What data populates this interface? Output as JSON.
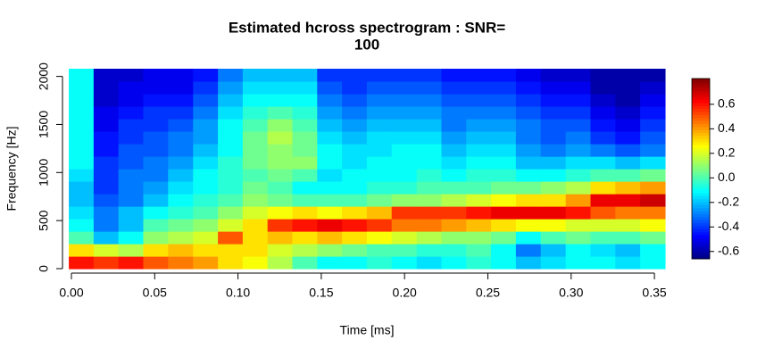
{
  "chart_data": {
    "type": "heatmap",
    "title": [
      "Estimated hcross spectrogram : SNR=",
      "100"
    ],
    "xlabel": "Time [ms]",
    "ylabel": "Frequency [Hz]",
    "xlim": [
      -0.0016,
      0.3564
    ],
    "ylim": [
      0,
      2080
    ],
    "zlim": [
      -0.66,
      0.81
    ],
    "xticks": [
      {
        "value": 0,
        "label": "0.00"
      },
      0.05,
      {
        "value": 0.1,
        "label": "0.10"
      },
      0.15,
      {
        "value": 0.2,
        "label": "0.20"
      },
      0.25,
      {
        "value": 0.3,
        "label": "0.30"
      },
      0.35
    ],
    "yticks": [
      0,
      500,
      1000,
      1500,
      2000
    ],
    "zticks": [
      -0.6,
      -0.4,
      -0.2,
      {
        "value": 0,
        "label": "0.0"
      },
      0.2,
      0.4,
      0.6
    ],
    "colormap": [
      "#00007f",
      "#0000ff",
      "#007fff",
      "#00ffff",
      "#7fff7f",
      "#ffff00",
      "#ff7f00",
      "#ff0000",
      "#7f0000"
    ],
    "x": [
      0.0059,
      0.0208,
      0.0357,
      0.0506,
      0.0655,
      0.0805,
      0.0954,
      0.1103,
      0.1252,
      0.1401,
      0.155,
      0.1699,
      0.1848,
      0.1997,
      0.2147,
      0.2296,
      0.2445,
      0.2594,
      0.2743,
      0.2892,
      0.3042,
      0.3191,
      0.334,
      0.3489
    ],
    "y": [
      65,
      195,
      325,
      455,
      585,
      715,
      845,
      975,
      1105,
      1235,
      1365,
      1495,
      1625,
      1755,
      1885,
      2015
    ],
    "z": [
      [
        0.6,
        0.55,
        0.6,
        0.5,
        0.45,
        0.4,
        0.3,
        0.25,
        0.15,
        0.0,
        -0.1,
        -0.1,
        -0.05,
        -0.1,
        -0.15,
        -0.1,
        -0.05,
        -0.1,
        -0.2,
        -0.15,
        -0.1,
        -0.1,
        -0.15,
        -0.1
      ],
      [
        0.3,
        0.2,
        0.15,
        0.3,
        0.35,
        0.3,
        0.3,
        0.3,
        0.2,
        0.15,
        0.1,
        0.05,
        0.0,
        0.0,
        -0.05,
        -0.05,
        0.0,
        -0.1,
        -0.3,
        -0.2,
        -0.1,
        -0.15,
        -0.2,
        -0.1
      ],
      [
        0.0,
        -0.2,
        -0.1,
        0.1,
        0.15,
        0.2,
        0.5,
        0.3,
        0.35,
        0.3,
        0.35,
        0.3,
        0.25,
        0.2,
        0.15,
        0.1,
        0.1,
        0.05,
        -0.1,
        0.0,
        0.05,
        0.0,
        0.0,
        0.05
      ],
      [
        -0.1,
        -0.3,
        -0.2,
        0.0,
        0.05,
        0.1,
        0.2,
        0.3,
        0.55,
        0.6,
        0.65,
        0.6,
        0.55,
        0.45,
        0.45,
        0.4,
        0.35,
        0.3,
        0.25,
        0.25,
        0.2,
        0.2,
        0.2,
        0.25
      ],
      [
        -0.15,
        -0.3,
        -0.2,
        -0.1,
        -0.05,
        0.0,
        0.1,
        0.2,
        0.25,
        0.3,
        0.25,
        0.3,
        0.35,
        0.55,
        0.55,
        0.55,
        0.6,
        0.65,
        0.65,
        0.65,
        0.6,
        0.5,
        0.45,
        0.45
      ],
      [
        -0.2,
        -0.35,
        -0.3,
        -0.2,
        -0.1,
        -0.05,
        0.0,
        0.1,
        0.05,
        0.0,
        0.0,
        0.0,
        0.05,
        0.1,
        0.1,
        0.15,
        0.2,
        0.25,
        0.3,
        0.3,
        0.4,
        0.65,
        0.65,
        0.7
      ],
      [
        -0.2,
        -0.4,
        -0.3,
        -0.25,
        -0.15,
        -0.1,
        -0.05,
        0.05,
        0.0,
        -0.1,
        -0.1,
        -0.1,
        -0.05,
        -0.05,
        0.0,
        0.0,
        0.0,
        0.05,
        0.05,
        0.1,
        0.15,
        0.3,
        0.35,
        0.4
      ],
      [
        -0.15,
        -0.4,
        -0.3,
        -0.3,
        -0.2,
        -0.1,
        -0.05,
        0.0,
        0.05,
        0.0,
        -0.15,
        -0.1,
        -0.1,
        -0.1,
        -0.05,
        -0.1,
        -0.05,
        -0.05,
        -0.1,
        -0.1,
        -0.05,
        0.0,
        0.0,
        0.05
      ],
      [
        -0.1,
        -0.4,
        -0.35,
        -0.3,
        -0.25,
        -0.15,
        -0.05,
        0.05,
        0.1,
        0.1,
        -0.1,
        -0.15,
        -0.1,
        -0.1,
        -0.1,
        -0.15,
        -0.1,
        -0.1,
        -0.2,
        -0.2,
        -0.15,
        -0.15,
        -0.2,
        -0.15
      ],
      [
        -0.1,
        -0.45,
        -0.35,
        -0.35,
        -0.3,
        -0.2,
        -0.1,
        0.05,
        0.1,
        0.05,
        -0.1,
        -0.15,
        -0.15,
        -0.1,
        -0.1,
        -0.2,
        -0.15,
        -0.15,
        -0.25,
        -0.3,
        -0.25,
        -0.3,
        -0.35,
        -0.3
      ],
      [
        -0.1,
        -0.45,
        -0.4,
        -0.35,
        -0.3,
        -0.25,
        -0.1,
        0.05,
        0.15,
        0.05,
        -0.15,
        -0.2,
        -0.15,
        -0.15,
        -0.15,
        -0.25,
        -0.2,
        -0.2,
        -0.3,
        -0.35,
        -0.3,
        -0.4,
        -0.45,
        -0.35
      ],
      [
        -0.1,
        -0.5,
        -0.4,
        -0.4,
        -0.35,
        -0.25,
        -0.1,
        0.0,
        0.1,
        0.0,
        -0.2,
        -0.25,
        -0.2,
        -0.2,
        -0.2,
        -0.3,
        -0.25,
        -0.25,
        -0.3,
        -0.35,
        -0.35,
        -0.45,
        -0.5,
        -0.4
      ],
      [
        -0.1,
        -0.5,
        -0.45,
        -0.4,
        -0.4,
        -0.3,
        -0.15,
        -0.05,
        0.0,
        -0.05,
        -0.25,
        -0.3,
        -0.25,
        -0.25,
        -0.25,
        -0.3,
        -0.3,
        -0.3,
        -0.35,
        -0.4,
        -0.4,
        -0.5,
        -0.55,
        -0.45
      ],
      [
        -0.1,
        -0.55,
        -0.5,
        -0.45,
        -0.45,
        -0.35,
        -0.2,
        -0.1,
        -0.1,
        -0.1,
        -0.3,
        -0.35,
        -0.3,
        -0.3,
        -0.3,
        -0.35,
        -0.35,
        -0.35,
        -0.4,
        -0.45,
        -0.45,
        -0.55,
        -0.6,
        -0.5
      ],
      [
        -0.1,
        -0.55,
        -0.5,
        -0.5,
        -0.5,
        -0.4,
        -0.25,
        -0.15,
        -0.15,
        -0.15,
        -0.35,
        -0.4,
        -0.35,
        -0.35,
        -0.35,
        -0.4,
        -0.4,
        -0.4,
        -0.45,
        -0.5,
        -0.5,
        -0.6,
        -0.6,
        -0.55
      ],
      [
        -0.1,
        -0.55,
        -0.55,
        -0.5,
        -0.5,
        -0.45,
        -0.3,
        -0.2,
        -0.2,
        -0.2,
        -0.4,
        -0.4,
        -0.4,
        -0.4,
        -0.4,
        -0.45,
        -0.45,
        -0.45,
        -0.5,
        -0.55,
        -0.55,
        -0.6,
        -0.6,
        -0.6
      ]
    ]
  }
}
